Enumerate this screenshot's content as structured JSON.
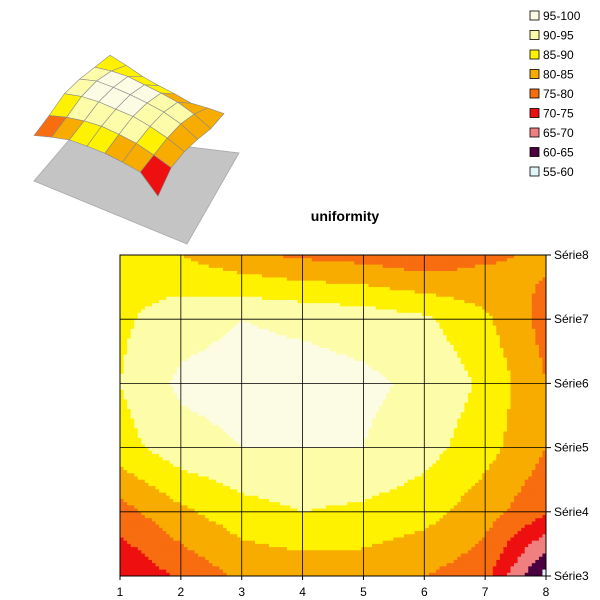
{
  "chart_data": [
    {
      "type": "surface-3d",
      "description_free": true,
      "grid": true
    },
    {
      "type": "contour",
      "title": "uniformity",
      "x_ticks": [
        "1",
        "2",
        "3",
        "4",
        "5",
        "6",
        "7",
        "8"
      ],
      "y_ticks": [
        "Série3",
        "Série4",
        "Série5",
        "Série6",
        "Série7",
        "Série8"
      ],
      "xlim": [
        1,
        8
      ],
      "ylim": [
        0,
        5
      ],
      "grid": true,
      "legend_position": "top-right",
      "levels": [
        {
          "label": "95-100",
          "min": 95,
          "max": 100,
          "color": "#fcfce4"
        },
        {
          "label": "90-95",
          "min": 90,
          "max": 95,
          "color": "#fdfca8"
        },
        {
          "label": "85-90",
          "min": 85,
          "max": 90,
          "color": "#fff200"
        },
        {
          "label": "80-85",
          "min": 80,
          "max": 85,
          "color": "#f8ac00"
        },
        {
          "label": "75-80",
          "min": 75,
          "max": 80,
          "color": "#f86d10"
        },
        {
          "label": "70-75",
          "min": 70,
          "max": 75,
          "color": "#ee1010"
        },
        {
          "label": "65-70",
          "min": 65,
          "max": 70,
          "color": "#f08080"
        },
        {
          "label": "60-65",
          "min": 60,
          "max": 65,
          "color": "#4b0040"
        },
        {
          "label": "55-60",
          "min": 55,
          "max": 60,
          "color": "#dff5f8"
        }
      ],
      "z": [
        [
          70,
          76,
          81,
          82,
          82,
          80,
          77,
          58
        ],
        [
          78,
          84,
          88,
          90,
          89,
          87,
          82,
          76
        ],
        [
          88,
          93,
          95,
          95,
          95,
          92,
          87,
          80
        ],
        [
          90,
          96,
          97,
          97,
          96,
          94,
          89,
          80
        ],
        [
          89,
          93,
          95,
          94,
          93,
          91,
          86,
          78
        ],
        [
          88,
          85,
          81,
          79,
          78,
          76,
          79,
          81
        ]
      ]
    }
  ]
}
